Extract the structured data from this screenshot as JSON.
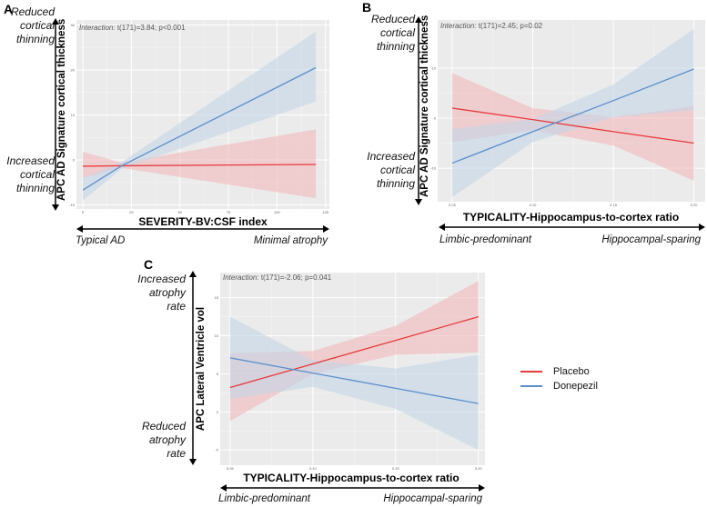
{
  "colors": {
    "placebo": "#e8393b",
    "donepezil": "#5b8fcc",
    "placebo_band": "#f2b9bc",
    "donepezil_band": "#c3d6e8",
    "panel_bg": "#ebebeb",
    "grid": "#ffffff"
  },
  "legend": [
    {
      "name": "Placebo",
      "color": "#e8393b"
    },
    {
      "name": "Donepezil",
      "color": "#5b8fcc"
    }
  ],
  "chart_data": [
    {
      "panel": "A",
      "type": "line",
      "annotation_label": "Interaction:",
      "annotation_stat": "t(171)=3.84; p<0.001",
      "xlabel": "SEVERITY-BV:CSF index",
      "ylabel": "APC AD Signature cortical thickness",
      "x_left_label": "Typical AD",
      "x_right_label": "Minimal atrophy",
      "y_top_label": "Reduced cortical thinning",
      "y_bottom_label": "Increased cortical thinning",
      "xlim": [
        -3.3,
        127
      ],
      "ylim": [
        -10.9,
        31.1
      ],
      "xticks": [
        0,
        25,
        50,
        75,
        100,
        125
      ],
      "yticks": [
        -10,
        0,
        10,
        20,
        30
      ],
      "grid": true,
      "series": [
        {
          "name": "Placebo",
          "x": [
            0,
            20,
            120
          ],
          "y": [
            -1.4,
            -1.3,
            -1.0
          ],
          "lower": [
            -4.0,
            -1.8,
            -8.5
          ],
          "upper": [
            1.8,
            -0.6,
            6.8
          ]
        },
        {
          "name": "Donepezil",
          "x": [
            0,
            20,
            120
          ],
          "y": [
            -6.7,
            -1.3,
            20.5
          ],
          "lower": [
            -9.0,
            -2.0,
            13.0
          ],
          "upper": [
            -4.0,
            -0.5,
            28.5
          ]
        }
      ]
    },
    {
      "panel": "B",
      "type": "line",
      "annotation_label": "Interaction:",
      "annotation_stat": "t(171)=2.45; p=0.02",
      "xlabel": "TYPICALITY-Hippocampus-to-cortex ratio",
      "ylabel": "APC AD Signature cortical thickness",
      "x_left_label": "Limbic-predominant",
      "x_right_label": "Hippocampal-sparing",
      "y_top_label": "Reduced cortical thinning",
      "y_bottom_label": "Increased cortical thinning",
      "xlim": [
        0.041,
        0.207
      ],
      "ylim": [
        -16.7,
        19.6
      ],
      "xticks": [
        0.05,
        0.1,
        0.15,
        0.2
      ],
      "xtick_labels": [
        "0.05",
        "0.10",
        "0.15",
        "0.20"
      ],
      "yticks": [
        -10,
        0,
        10
      ],
      "grid": true,
      "series": [
        {
          "name": "Placebo",
          "x": [
            0.05,
            0.1,
            0.15,
            0.2
          ],
          "y": [
            2.0,
            -0.3,
            -2.7,
            -5.0
          ],
          "lower": [
            -4.8,
            -2.4,
            -5.5,
            -12.5
          ],
          "upper": [
            9.0,
            2.0,
            0.2,
            2.4
          ]
        },
        {
          "name": "Donepezil",
          "x": [
            0.05,
            0.1,
            0.15,
            0.2
          ],
          "y": [
            -9.0,
            -2.7,
            3.5,
            9.8
          ],
          "lower": [
            -15.8,
            -4.8,
            0.2,
            1.6
          ],
          "upper": [
            -2.2,
            -0.2,
            6.7,
            17.8
          ]
        }
      ]
    },
    {
      "panel": "C",
      "type": "line",
      "annotation_label": "Interaction:",
      "annotation_stat": "t(171)=-2.06; p=0.041",
      "xlabel": "TYPICALITY-Hippocampus-to-cortex ratio",
      "ylabel": "APC Lateral Ventricle vol",
      "x_left_label": "Limbic-predominant",
      "x_right_label": "Hippocampal-sparing",
      "y_top_label": "Increased atrophy rate",
      "y_bottom_label": "Reduced atrophy rate",
      "xlim": [
        0.044,
        0.204
      ],
      "ylim": [
        -7.0,
        18.3
      ],
      "xticks": [
        0.05,
        0.1,
        0.15,
        0.2
      ],
      "xtick_labels": [
        "0.05",
        "0.10",
        "0.15",
        "0.20"
      ],
      "yticks": [
        -5,
        0,
        5,
        10,
        15
      ],
      "grid": true,
      "series": [
        {
          "name": "Placebo",
          "x": [
            0.05,
            0.1,
            0.15,
            0.2
          ],
          "y": [
            3.2,
            6.3,
            9.4,
            12.5
          ],
          "lower": [
            -1.2,
            5.0,
            7.5,
            7.8
          ],
          "upper": [
            7.7,
            8.0,
            11.3,
            17.2
          ]
        },
        {
          "name": "Donepezil",
          "x": [
            0.05,
            0.1,
            0.15,
            0.2
          ],
          "y": [
            7.1,
            5.1,
            3.1,
            1.1
          ],
          "lower": [
            1.7,
            3.3,
            0.4,
            -5.0
          ],
          "upper": [
            12.5,
            6.8,
            5.7,
            7.5
          ]
        }
      ]
    }
  ]
}
